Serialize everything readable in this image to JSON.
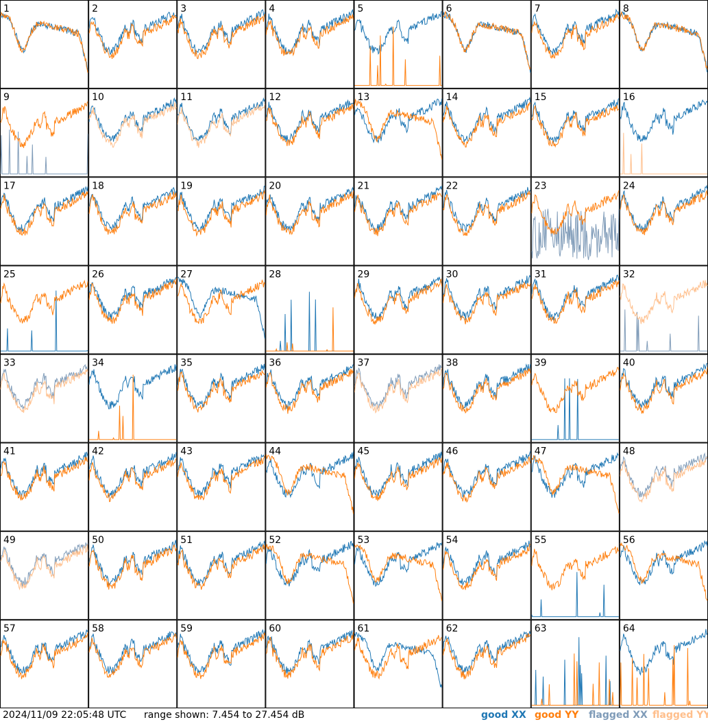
{
  "footer": {
    "timestamp": "2024/11/09 22:05:48 UTC",
    "range": "range shown: 7.454 to 27.454 dB"
  },
  "legend": [
    {
      "id": "good-xx",
      "label": "good XX",
      "color": "#1f77b4"
    },
    {
      "id": "good-yy",
      "label": "good YY",
      "color": "#ff7f0e"
    },
    {
      "id": "flagged-xx",
      "label": "flagged XX",
      "color": "#7f9bb8"
    },
    {
      "id": "flagged-yy",
      "label": "flagged YY",
      "color": "#ffbf8c"
    }
  ],
  "chart_data": {
    "type": "line",
    "layout": "small-multiples 8x8",
    "ylim": [
      7.454,
      27.454
    ],
    "yunit": "dB",
    "grid": false,
    "panels": [
      {
        "id": 1,
        "xx": "anomalous",
        "yy": "anomalous"
      },
      {
        "id": 2,
        "xx": "good",
        "yy": "good"
      },
      {
        "id": 3,
        "xx": "good",
        "yy": "good"
      },
      {
        "id": 4,
        "xx": "good",
        "yy": "good"
      },
      {
        "id": 5,
        "xx": "good",
        "yy": "spiky"
      },
      {
        "id": 6,
        "xx": "anomalous",
        "yy": "anomalous"
      },
      {
        "id": 7,
        "xx": "good",
        "yy": "good"
      },
      {
        "id": 8,
        "xx": "anomalous",
        "yy": "anomalous"
      },
      {
        "id": 9,
        "xx": "flagged-spiky",
        "yy": "good"
      },
      {
        "id": 10,
        "xx": "good",
        "yy": "flagged"
      },
      {
        "id": 11,
        "xx": "good",
        "yy": "flagged"
      },
      {
        "id": 12,
        "xx": "good",
        "yy": "good"
      },
      {
        "id": 13,
        "xx": "good",
        "yy": "anomalous"
      },
      {
        "id": 14,
        "xx": "good",
        "yy": "good"
      },
      {
        "id": 15,
        "xx": "good",
        "yy": "good"
      },
      {
        "id": 16,
        "xx": "good",
        "yy": "flagged-spiky"
      },
      {
        "id": 17,
        "xx": "good",
        "yy": "good"
      },
      {
        "id": 18,
        "xx": "good",
        "yy": "good"
      },
      {
        "id": 19,
        "xx": "good",
        "yy": "good"
      },
      {
        "id": 20,
        "xx": "good",
        "yy": "good"
      },
      {
        "id": 21,
        "xx": "good",
        "yy": "good"
      },
      {
        "id": 22,
        "xx": "good",
        "yy": "good"
      },
      {
        "id": 23,
        "xx": "flagged-noisy",
        "yy": "good"
      },
      {
        "id": 24,
        "xx": "good",
        "yy": "good"
      },
      {
        "id": 25,
        "xx": "spiky",
        "yy": "good"
      },
      {
        "id": 26,
        "xx": "good",
        "yy": "good"
      },
      {
        "id": 27,
        "xx": "anomalous",
        "yy": "good"
      },
      {
        "id": 28,
        "xx": "spiky",
        "yy": "spiky"
      },
      {
        "id": 29,
        "xx": "good",
        "yy": "good"
      },
      {
        "id": 30,
        "xx": "good",
        "yy": "good"
      },
      {
        "id": 31,
        "xx": "good",
        "yy": "good"
      },
      {
        "id": 32,
        "xx": "flagged-spiky",
        "yy": "flagged"
      },
      {
        "id": 33,
        "xx": "flagged",
        "yy": "flagged"
      },
      {
        "id": 34,
        "xx": "good",
        "yy": "spiky"
      },
      {
        "id": 35,
        "xx": "good",
        "yy": "good"
      },
      {
        "id": 36,
        "xx": "good",
        "yy": "good"
      },
      {
        "id": 37,
        "xx": "flagged",
        "yy": "flagged"
      },
      {
        "id": 38,
        "xx": "good",
        "yy": "good"
      },
      {
        "id": 39,
        "xx": "spiky",
        "yy": "good"
      },
      {
        "id": 40,
        "xx": "good",
        "yy": "good"
      },
      {
        "id": 41,
        "xx": "good",
        "yy": "good"
      },
      {
        "id": 42,
        "xx": "good",
        "yy": "good"
      },
      {
        "id": 43,
        "xx": "good",
        "yy": "good"
      },
      {
        "id": 44,
        "xx": "good",
        "yy": "anomalous"
      },
      {
        "id": 45,
        "xx": "good",
        "yy": "good"
      },
      {
        "id": 46,
        "xx": "good",
        "yy": "good"
      },
      {
        "id": 47,
        "xx": "good",
        "yy": "anomalous"
      },
      {
        "id": 48,
        "xx": "flagged",
        "yy": "flagged"
      },
      {
        "id": 49,
        "xx": "flagged",
        "yy": "flagged"
      },
      {
        "id": 50,
        "xx": "good",
        "yy": "good"
      },
      {
        "id": 51,
        "xx": "good",
        "yy": "good"
      },
      {
        "id": 52,
        "xx": "good",
        "yy": "anomalous"
      },
      {
        "id": 53,
        "xx": "good",
        "yy": "anomalous"
      },
      {
        "id": 54,
        "xx": "good",
        "yy": "good"
      },
      {
        "id": 55,
        "xx": "spiky",
        "yy": "good"
      },
      {
        "id": 56,
        "xx": "good",
        "yy": "anomalous"
      },
      {
        "id": 57,
        "xx": "good",
        "yy": "good"
      },
      {
        "id": 58,
        "xx": "good",
        "yy": "good"
      },
      {
        "id": 59,
        "xx": "good",
        "yy": "good"
      },
      {
        "id": 60,
        "xx": "good",
        "yy": "good"
      },
      {
        "id": 61,
        "xx": "anomalous",
        "yy": "good"
      },
      {
        "id": 62,
        "xx": "good",
        "yy": "good"
      },
      {
        "id": 63,
        "xx": "spiky",
        "yy": "spiky"
      },
      {
        "id": 64,
        "xx": "good",
        "yy": "spiky"
      }
    ]
  }
}
